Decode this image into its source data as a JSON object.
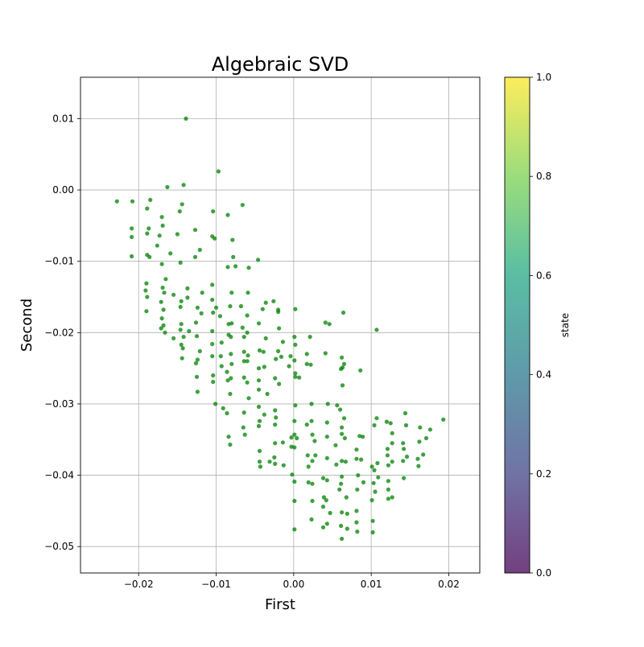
{
  "chart_data": {
    "type": "scatter",
    "title": "Algebraic SVD",
    "xlabel": "First",
    "ylabel": "Second",
    "xlim": [
      -0.0275,
      0.024
    ],
    "ylim": [
      -0.0537,
      0.0158
    ],
    "x_ticks": [
      -0.02,
      -0.01,
      0.0,
      0.01,
      0.02
    ],
    "x_tick_labels": [
      "−0.02",
      "−0.01",
      "0.00",
      "0.01",
      "0.02"
    ],
    "y_ticks": [
      0.01,
      0.0,
      -0.01,
      -0.02,
      -0.03,
      -0.04,
      -0.05
    ],
    "y_tick_labels": [
      "0.01",
      "0.00",
      "−0.01",
      "−0.02",
      "−0.03",
      "−0.04",
      "−0.05"
    ],
    "grid": true,
    "point_color": "#008000",
    "point_opacity": 0.75,
    "colorbar": {
      "label": "state",
      "range": [
        0.0,
        1.0
      ],
      "ticks": [
        0.0,
        0.2,
        0.4,
        0.6,
        0.8,
        1.0
      ],
      "tick_labels": [
        "0.0",
        "0.2",
        "0.4",
        "0.6",
        "0.8",
        "1.0"
      ],
      "colormap": [
        "#440154",
        "#414487",
        "#2a788e",
        "#22a884",
        "#7ad151",
        "#fde725"
      ],
      "opacity": 0.75
    },
    "points": [
      [
        -0.0228,
        -0.0016
      ],
      [
        -0.0208,
        -0.0016
      ],
      [
        -0.0209,
        -0.0054
      ],
      [
        -0.0209,
        -0.0066
      ],
      [
        -0.0209,
        -0.0093
      ],
      [
        -0.0189,
        -0.0026
      ],
      [
        -0.0185,
        -0.0014
      ],
      [
        -0.0187,
        -0.0054
      ],
      [
        -0.0189,
        -0.0061
      ],
      [
        -0.0189,
        -0.0091
      ],
      [
        -0.0186,
        -0.0094
      ],
      [
        -0.019,
        -0.0131
      ],
      [
        -0.0191,
        -0.0141
      ],
      [
        -0.0189,
        -0.015
      ],
      [
        -0.019,
        -0.017
      ],
      [
        -0.017,
        -0.0038
      ],
      [
        -0.0169,
        -0.005
      ],
      [
        -0.0173,
        -0.0064
      ],
      [
        -0.0176,
        -0.0078
      ],
      [
        -0.017,
        -0.0104
      ],
      [
        -0.0165,
        -0.0125
      ],
      [
        -0.0169,
        -0.0137
      ],
      [
        -0.0167,
        -0.0144
      ],
      [
        -0.0171,
        -0.0157
      ],
      [
        -0.0168,
        -0.0168
      ],
      [
        -0.017,
        -0.018
      ],
      [
        -0.0168,
        -0.019
      ],
      [
        -0.0166,
        -0.02
      ],
      [
        -0.0171,
        -0.0194
      ],
      [
        -0.0163,
        0.0004
      ],
      [
        -0.0159,
        -0.0089
      ],
      [
        -0.015,
        -0.0062
      ],
      [
        -0.0147,
        -0.003
      ],
      [
        -0.0155,
        -0.0147
      ],
      [
        -0.0155,
        -0.0208
      ],
      [
        -0.0144,
        -0.002
      ],
      [
        -0.0142,
        0.0007
      ],
      [
        -0.0146,
        -0.0102
      ],
      [
        -0.0145,
        -0.0156
      ],
      [
        -0.0146,
        -0.0164
      ],
      [
        -0.0145,
        -0.0188
      ],
      [
        -0.0146,
        -0.0196
      ],
      [
        -0.0142,
        -0.0206
      ],
      [
        -0.0145,
        -0.0217
      ],
      [
        -0.0144,
        -0.0236
      ],
      [
        -0.0143,
        -0.0222
      ],
      [
        -0.0139,
        0.01
      ],
      [
        -0.0137,
        -0.0138
      ],
      [
        -0.0137,
        -0.0151
      ],
      [
        -0.0135,
        -0.0198
      ],
      [
        -0.0127,
        -0.0056
      ],
      [
        -0.0127,
        -0.0094
      ],
      [
        -0.0124,
        -0.0165
      ],
      [
        -0.0126,
        -0.0186
      ],
      [
        -0.0125,
        -0.0205
      ],
      [
        -0.0124,
        -0.0238
      ],
      [
        -0.0126,
        -0.0243
      ],
      [
        -0.0125,
        -0.0262
      ],
      [
        -0.0124,
        -0.0283
      ],
      [
        -0.0121,
        -0.0084
      ],
      [
        -0.0118,
        -0.0144
      ],
      [
        -0.0119,
        -0.0173
      ],
      [
        -0.0121,
        -0.0226
      ],
      [
        -0.0104,
        -0.003
      ],
      [
        -0.0105,
        -0.0065
      ],
      [
        -0.0105,
        -0.0133
      ],
      [
        -0.0105,
        -0.0154
      ],
      [
        -0.0104,
        -0.0172
      ],
      [
        -0.0105,
        -0.0198
      ],
      [
        -0.0105,
        -0.0216
      ],
      [
        -0.0105,
        -0.0233
      ],
      [
        -0.0104,
        -0.026
      ],
      [
        -0.0104,
        -0.0269
      ],
      [
        -0.0101,
        -0.03
      ],
      [
        -0.0102,
        -0.0068
      ],
      [
        -0.01,
        -0.0165
      ],
      [
        -0.0097,
        0.0026
      ],
      [
        -0.0095,
        -0.0177
      ],
      [
        -0.0093,
        -0.0214
      ],
      [
        -0.0094,
        -0.0233
      ],
      [
        -0.0093,
        -0.0247
      ],
      [
        -0.0091,
        -0.0306
      ],
      [
        -0.0085,
        -0.0035
      ],
      [
        -0.0085,
        -0.0108
      ],
      [
        -0.0084,
        -0.0188
      ],
      [
        -0.0084,
        -0.0203
      ],
      [
        -0.0086,
        -0.0255
      ],
      [
        -0.0085,
        -0.0267
      ],
      [
        -0.0086,
        -0.0313
      ],
      [
        -0.0084,
        -0.0346
      ],
      [
        -0.0079,
        -0.007
      ],
      [
        -0.0078,
        -0.0094
      ],
      [
        -0.008,
        -0.0144
      ],
      [
        -0.0082,
        -0.0163
      ],
      [
        -0.008,
        -0.0187
      ],
      [
        -0.0081,
        -0.0206
      ],
      [
        -0.0081,
        -0.023
      ],
      [
        -0.008,
        -0.0244
      ],
      [
        -0.0081,
        -0.0264
      ],
      [
        -0.0082,
        -0.0286
      ],
      [
        -0.0082,
        -0.0357
      ],
      [
        -0.0075,
        -0.0107
      ],
      [
        -0.0066,
        -0.0021
      ],
      [
        -0.0068,
        -0.0163
      ],
      [
        -0.0066,
        -0.0193
      ],
      [
        -0.0064,
        -0.0206
      ],
      [
        -0.0064,
        -0.0227
      ],
      [
        -0.0064,
        -0.024
      ],
      [
        -0.0064,
        -0.0263
      ],
      [
        -0.0065,
        -0.0333
      ],
      [
        -0.0063,
        -0.0343
      ],
      [
        -0.0064,
        -0.0312
      ],
      [
        -0.0058,
        -0.0109
      ],
      [
        -0.0059,
        -0.0144
      ],
      [
        -0.006,
        -0.0176
      ],
      [
        -0.006,
        -0.02
      ],
      [
        -0.0059,
        -0.0232
      ],
      [
        -0.006,
        -0.024
      ],
      [
        -0.006,
        -0.027
      ],
      [
        -0.0058,
        -0.0292
      ],
      [
        -0.0046,
        -0.0098
      ],
      [
        -0.0045,
        -0.0187
      ],
      [
        -0.0044,
        -0.0225
      ],
      [
        -0.0045,
        -0.025
      ],
      [
        -0.0045,
        -0.0267
      ],
      [
        -0.0045,
        -0.028
      ],
      [
        -0.0045,
        -0.0304
      ],
      [
        -0.0044,
        -0.0324
      ],
      [
        -0.0045,
        -0.0331
      ],
      [
        -0.0044,
        -0.0366
      ],
      [
        -0.0044,
        -0.0381
      ],
      [
        -0.0043,
        -0.0388
      ],
      [
        -0.004,
        -0.0167
      ],
      [
        -0.0039,
        -0.0227
      ],
      [
        -0.0038,
        -0.0248
      ],
      [
        -0.0038,
        -0.0315
      ],
      [
        -0.0036,
        -0.0158
      ],
      [
        -0.0036,
        -0.0208
      ],
      [
        -0.0034,
        -0.0286
      ],
      [
        -0.0031,
        -0.0381
      ],
      [
        -0.0026,
        -0.0156
      ],
      [
        -0.0023,
        -0.0237
      ],
      [
        -0.0024,
        -0.0264
      ],
      [
        -0.0024,
        -0.0309
      ],
      [
        -0.0023,
        -0.0319
      ],
      [
        -0.0024,
        -0.0329
      ],
      [
        -0.0024,
        -0.0355
      ],
      [
        -0.0025,
        -0.0375
      ],
      [
        -0.0024,
        -0.0384
      ],
      [
        -0.002,
        -0.0168
      ],
      [
        -0.002,
        -0.0171
      ],
      [
        -0.0019,
        -0.0194
      ],
      [
        -0.002,
        -0.0226
      ],
      [
        -0.0019,
        -0.0272
      ],
      [
        -0.0016,
        -0.0234
      ],
      [
        -0.0014,
        -0.0213
      ],
      [
        -0.0014,
        -0.0354
      ],
      [
        -0.0013,
        -0.0386
      ],
      [
        -0.0006,
        -0.0247
      ],
      [
        -0.0004,
        -0.0233
      ],
      [
        -0.0003,
        -0.0347
      ],
      [
        -0.0003,
        -0.036
      ],
      [
        -0.0002,
        -0.0399
      ],
      [
        0.0002,
        -0.0167
      ],
      [
        0.0001,
        -0.0206
      ],
      [
        0.0002,
        -0.0217
      ],
      [
        0.0001,
        -0.0239
      ],
      [
        0.0002,
        -0.0257
      ],
      [
        0.0002,
        -0.0262
      ],
      [
        0.0002,
        -0.0302
      ],
      [
        0.0001,
        -0.0324
      ],
      [
        0.0001,
        -0.0343
      ],
      [
        0.0001,
        -0.0361
      ],
      [
        0.0001,
        -0.0409
      ],
      [
        0.0001,
        -0.0436
      ],
      [
        0.0001,
        -0.0476
      ],
      [
        0.0004,
        -0.0348
      ],
      [
        0.0007,
        -0.0263
      ],
      [
        0.0017,
        -0.023
      ],
      [
        0.0017,
        -0.0244
      ],
      [
        0.0017,
        -0.0329
      ],
      [
        0.0018,
        -0.0372
      ],
      [
        0.0019,
        -0.0388
      ],
      [
        0.0019,
        -0.041
      ],
      [
        0.0021,
        -0.0206
      ],
      [
        0.0022,
        -0.0245
      ],
      [
        0.0023,
        -0.03
      ],
      [
        0.0023,
        -0.0324
      ],
      [
        0.0024,
        -0.0343
      ],
      [
        0.0024,
        -0.038
      ],
      [
        0.0024,
        -0.0412
      ],
      [
        0.0024,
        -0.0436
      ],
      [
        0.0023,
        -0.0462
      ],
      [
        0.0027,
        -0.0352
      ],
      [
        0.0028,
        -0.0372
      ],
      [
        0.0038,
        -0.0404
      ],
      [
        0.0038,
        -0.0444
      ],
      [
        0.0039,
        -0.0431
      ],
      [
        0.0038,
        -0.0473
      ],
      [
        0.0041,
        -0.0229
      ],
      [
        0.0041,
        -0.0186
      ],
      [
        0.0044,
        -0.03
      ],
      [
        0.0043,
        -0.0326
      ],
      [
        0.0043,
        -0.0346
      ],
      [
        0.0043,
        -0.0376
      ],
      [
        0.0043,
        -0.0407
      ],
      [
        0.0042,
        -0.0435
      ],
      [
        0.0043,
        -0.0468
      ],
      [
        0.0046,
        -0.0188
      ],
      [
        0.0047,
        -0.0453
      ],
      [
        0.0054,
        -0.0358
      ],
      [
        0.0055,
        -0.0385
      ],
      [
        0.0056,
        -0.0302
      ],
      [
        0.0059,
        -0.042
      ],
      [
        0.006,
        -0.0308
      ],
      [
        0.0062,
        -0.0235
      ],
      [
        0.0061,
        -0.0251
      ],
      [
        0.0062,
        -0.0333
      ],
      [
        0.0062,
        -0.0342
      ],
      [
        0.0062,
        -0.038
      ],
      [
        0.0062,
        -0.0402
      ],
      [
        0.0061,
        -0.0412
      ],
      [
        0.0062,
        -0.0452
      ],
      [
        0.0061,
        -0.0471
      ],
      [
        0.0062,
        -0.0489
      ],
      [
        0.0063,
        -0.0249
      ],
      [
        0.0063,
        -0.0274
      ],
      [
        0.0064,
        -0.0172
      ],
      [
        0.0065,
        -0.0244
      ],
      [
        0.0065,
        -0.032
      ],
      [
        0.0066,
        -0.0348
      ],
      [
        0.0067,
        -0.0381
      ],
      [
        0.0068,
        -0.0431
      ],
      [
        0.0069,
        -0.0454
      ],
      [
        0.0069,
        -0.0475
      ],
      [
        0.0081,
        -0.0364
      ],
      [
        0.0081,
        -0.0377
      ],
      [
        0.0081,
        -0.045
      ],
      [
        0.0082,
        -0.042
      ],
      [
        0.0081,
        -0.0466
      ],
      [
        0.0082,
        -0.0479
      ],
      [
        0.0083,
        -0.04
      ],
      [
        0.0085,
        -0.0345
      ],
      [
        0.0086,
        -0.0253
      ],
      [
        0.0087,
        -0.0378
      ],
      [
        0.0089,
        -0.0346
      ],
      [
        0.009,
        -0.041
      ],
      [
        0.0101,
        -0.0388
      ],
      [
        0.0101,
        -0.0435
      ],
      [
        0.0102,
        -0.0464
      ],
      [
        0.0102,
        -0.048
      ],
      [
        0.0104,
        -0.0393
      ],
      [
        0.0103,
        -0.0411
      ],
      [
        0.0104,
        -0.033
      ],
      [
        0.0105,
        -0.0423
      ],
      [
        0.0107,
        -0.0196
      ],
      [
        0.0107,
        -0.032
      ],
      [
        0.0108,
        -0.0383
      ],
      [
        0.0109,
        -0.0403
      ],
      [
        0.012,
        -0.0325
      ],
      [
        0.0121,
        -0.0363
      ],
      [
        0.0121,
        -0.0372
      ],
      [
        0.0122,
        -0.0386
      ],
      [
        0.0122,
        -0.0408
      ],
      [
        0.0122,
        -0.042
      ],
      [
        0.0122,
        -0.0433
      ],
      [
        0.0125,
        -0.0327
      ],
      [
        0.0127,
        -0.0341
      ],
      [
        0.0127,
        -0.0355
      ],
      [
        0.0127,
        -0.0381
      ],
      [
        0.0127,
        -0.0431
      ],
      [
        0.0141,
        -0.0355
      ],
      [
        0.0141,
        -0.038
      ],
      [
        0.0142,
        -0.0404
      ],
      [
        0.0142,
        -0.0363
      ],
      [
        0.0144,
        -0.0313
      ],
      [
        0.0145,
        -0.033
      ],
      [
        0.0146,
        -0.0374
      ],
      [
        0.016,
        -0.0377
      ],
      [
        0.0161,
        -0.0387
      ],
      [
        0.0162,
        -0.0353
      ],
      [
        0.0163,
        -0.0333
      ],
      [
        0.0171,
        -0.0348
      ],
      [
        0.0176,
        -0.0336
      ],
      [
        0.0193,
        -0.0322
      ],
      [
        0.0167,
        -0.0371
      ]
    ]
  }
}
